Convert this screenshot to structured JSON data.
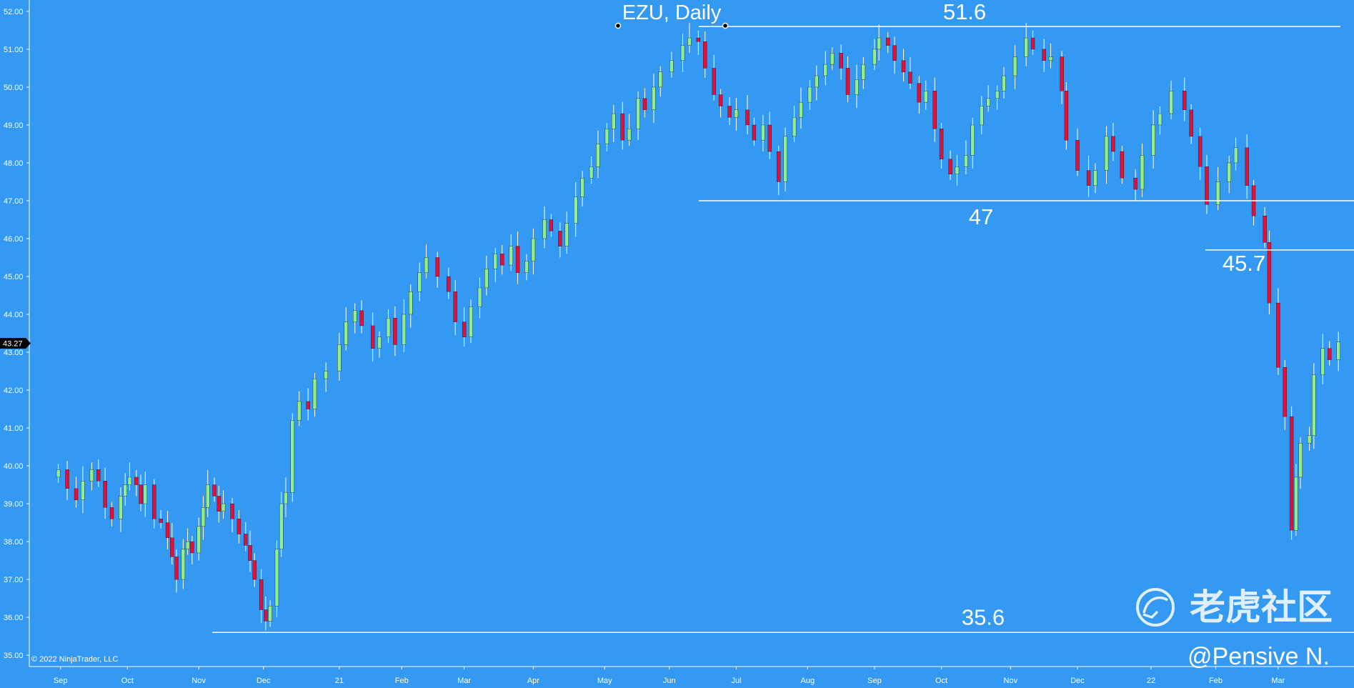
{
  "title": "EZU, Daily",
  "copyright": "© 2022 NinjaTrader, LLC",
  "watermark": "老虎社区",
  "author": "@Pensive N.",
  "current_price_label": "43.27",
  "colors": {
    "background": "#3399f3",
    "up": "#90ee90",
    "down": "#e0103a",
    "wick": "#ffffff",
    "level_line": "#ffffff",
    "price_tag": "#000000"
  },
  "chart_data": {
    "type": "candlestick",
    "symbol": "EZU",
    "interval": "Daily",
    "ylim": [
      34.7,
      52.3
    ],
    "y_ticks": [
      "35.00",
      "36.00",
      "37.00",
      "38.00",
      "39.00",
      "40.00",
      "41.00",
      "42.00",
      "43.00",
      "44.00",
      "45.00",
      "46.00",
      "47.00",
      "48.00",
      "49.00",
      "50.00",
      "51.00",
      "52.00"
    ],
    "x_ticks": [
      "Sep",
      "Oct",
      "Nov",
      "Dec",
      "21",
      "Feb",
      "Mar",
      "Apr",
      "May",
      "Jun",
      "Jul",
      "Aug",
      "Sep",
      "Oct",
      "Nov",
      "Dec",
      "22",
      "Feb",
      "Mar"
    ],
    "grid": false,
    "levels": [
      {
        "value": 51.6,
        "label": "51.6"
      },
      {
        "value": 47,
        "label": "47"
      },
      {
        "value": 45.7,
        "label": "45.7"
      },
      {
        "value": 35.6,
        "label": "35.6"
      }
    ],
    "closes": [
      [
        "2020-08-31",
        39.9
      ],
      [
        "2020-09-04",
        39.4
      ],
      [
        "2020-09-08",
        39.1
      ],
      [
        "2020-09-11",
        39.6
      ],
      [
        "2020-09-15",
        39.9
      ],
      [
        "2020-09-18",
        39.6
      ],
      [
        "2020-09-21",
        38.9
      ],
      [
        "2020-09-24",
        38.6
      ],
      [
        "2020-09-28",
        39.2
      ],
      [
        "2020-09-30",
        39.5
      ],
      [
        "2020-10-02",
        39.7
      ],
      [
        "2020-10-05",
        39.5
      ],
      [
        "2020-10-07",
        39.0
      ],
      [
        "2020-10-09",
        39.5
      ],
      [
        "2020-10-13",
        38.6
      ],
      [
        "2020-10-16",
        38.5
      ],
      [
        "2020-10-19",
        38.1
      ],
      [
        "2020-10-21",
        37.6
      ],
      [
        "2020-10-23",
        37.0
      ],
      [
        "2020-10-26",
        37.8
      ],
      [
        "2020-10-28",
        38.0
      ],
      [
        "2020-10-30",
        37.7
      ],
      [
        "2020-11-02",
        38.4
      ],
      [
        "2020-11-04",
        38.9
      ],
      [
        "2020-11-06",
        39.5
      ],
      [
        "2020-11-09",
        39.2
      ],
      [
        "2020-11-11",
        38.8
      ],
      [
        "2020-11-13",
        39.0
      ],
      [
        "2020-11-17",
        38.6
      ],
      [
        "2020-11-20",
        38.2
      ],
      [
        "2020-11-23",
        37.9
      ],
      [
        "2020-11-25",
        37.5
      ],
      [
        "2020-11-27",
        37.0
      ],
      [
        "2020-11-30",
        36.2
      ],
      [
        "2020-12-02",
        35.9
      ],
      [
        "2020-12-04",
        36.3
      ],
      [
        "2020-12-07",
        37.8
      ],
      [
        "2020-12-09",
        39.0
      ],
      [
        "2020-12-11",
        39.3
      ],
      [
        "2020-12-14",
        41.2
      ],
      [
        "2020-12-17",
        41.7
      ],
      [
        "2020-12-21",
        41.5
      ],
      [
        "2020-12-24",
        42.3
      ],
      [
        "2020-12-29",
        42.5
      ],
      [
        "2021-01-04",
        43.2
      ],
      [
        "2021-01-07",
        43.8
      ],
      [
        "2021-01-11",
        44.1
      ],
      [
        "2021-01-14",
        43.7
      ],
      [
        "2021-01-19",
        43.1
      ],
      [
        "2021-01-22",
        43.4
      ],
      [
        "2021-01-26",
        43.9
      ],
      [
        "2021-01-29",
        43.2
      ],
      [
        "2021-02-02",
        44.0
      ],
      [
        "2021-02-05",
        44.6
      ],
      [
        "2021-02-09",
        45.1
      ],
      [
        "2021-02-12",
        45.5
      ],
      [
        "2021-02-17",
        45.0
      ],
      [
        "2021-02-22",
        44.6
      ],
      [
        "2021-02-25",
        43.8
      ],
      [
        "2021-03-01",
        43.4
      ],
      [
        "2021-03-04",
        44.2
      ],
      [
        "2021-03-08",
        44.7
      ],
      [
        "2021-03-11",
        45.2
      ],
      [
        "2021-03-15",
        45.6
      ],
      [
        "2021-03-18",
        45.3
      ],
      [
        "2021-03-22",
        45.8
      ],
      [
        "2021-03-25",
        45.1
      ],
      [
        "2021-03-29",
        45.4
      ],
      [
        "2021-04-01",
        46.0
      ],
      [
        "2021-04-06",
        46.5
      ],
      [
        "2021-04-09",
        46.2
      ],
      [
        "2021-04-13",
        45.8
      ],
      [
        "2021-04-16",
        46.4
      ],
      [
        "2021-04-20",
        47.1
      ],
      [
        "2021-04-23",
        47.6
      ],
      [
        "2021-04-27",
        47.9
      ],
      [
        "2021-04-30",
        48.5
      ],
      [
        "2021-05-04",
        48.9
      ],
      [
        "2021-05-07",
        49.3
      ],
      [
        "2021-05-11",
        48.6
      ],
      [
        "2021-05-14",
        48.9
      ],
      [
        "2021-05-18",
        49.7
      ],
      [
        "2021-05-21",
        49.4
      ],
      [
        "2021-05-25",
        50.0
      ],
      [
        "2021-05-28",
        50.4
      ],
      [
        "2021-06-02",
        50.7
      ],
      [
        "2021-06-07",
        51.1
      ],
      [
        "2021-06-10",
        51.3
      ],
      [
        "2021-06-14",
        51.2
      ],
      [
        "2021-06-17",
        50.5
      ],
      [
        "2021-06-21",
        49.8
      ],
      [
        "2021-06-24",
        49.5
      ],
      [
        "2021-06-28",
        49.2
      ],
      [
        "2021-07-01",
        49.4
      ],
      [
        "2021-07-06",
        49.0
      ],
      [
        "2021-07-09",
        48.6
      ],
      [
        "2021-07-13",
        49.0
      ],
      [
        "2021-07-16",
        48.3
      ],
      [
        "2021-07-20",
        47.5
      ],
      [
        "2021-07-23",
        48.7
      ],
      [
        "2021-07-27",
        49.2
      ],
      [
        "2021-07-30",
        49.6
      ],
      [
        "2021-08-03",
        50.0
      ],
      [
        "2021-08-06",
        50.3
      ],
      [
        "2021-08-10",
        50.6
      ],
      [
        "2021-08-13",
        50.9
      ],
      [
        "2021-08-17",
        50.5
      ],
      [
        "2021-08-20",
        49.8
      ],
      [
        "2021-08-24",
        50.2
      ],
      [
        "2021-08-27",
        50.6
      ],
      [
        "2021-09-01",
        51.0
      ],
      [
        "2021-09-03",
        51.3
      ],
      [
        "2021-09-07",
        51.1
      ],
      [
        "2021-09-10",
        50.7
      ],
      [
        "2021-09-14",
        50.4
      ],
      [
        "2021-09-17",
        50.1
      ],
      [
        "2021-09-21",
        49.6
      ],
      [
        "2021-09-24",
        49.9
      ],
      [
        "2021-09-28",
        48.9
      ],
      [
        "2021-10-01",
        48.1
      ],
      [
        "2021-10-05",
        47.7
      ],
      [
        "2021-10-08",
        47.9
      ],
      [
        "2021-10-12",
        48.2
      ],
      [
        "2021-10-15",
        49.0
      ],
      [
        "2021-10-19",
        49.5
      ],
      [
        "2021-10-22",
        49.7
      ],
      [
        "2021-10-26",
        49.9
      ],
      [
        "2021-10-29",
        50.3
      ],
      [
        "2021-11-03",
        50.8
      ],
      [
        "2021-11-08",
        51.3
      ],
      [
        "2021-11-11",
        51.0
      ],
      [
        "2021-11-16",
        50.7
      ],
      [
        "2021-11-19",
        50.8
      ],
      [
        "2021-11-24",
        49.9
      ],
      [
        "2021-11-26",
        48.6
      ],
      [
        "2021-12-01",
        47.8
      ],
      [
        "2021-12-06",
        47.4
      ],
      [
        "2021-12-09",
        47.8
      ],
      [
        "2021-12-14",
        48.7
      ],
      [
        "2021-12-17",
        48.3
      ],
      [
        "2021-12-21",
        47.6
      ],
      [
        "2021-12-27",
        47.3
      ],
      [
        "2021-12-30",
        48.2
      ],
      [
        "2022-01-04",
        49.0
      ],
      [
        "2022-01-07",
        49.3
      ],
      [
        "2022-01-12",
        49.9
      ],
      [
        "2022-01-18",
        49.4
      ],
      [
        "2022-01-21",
        48.7
      ],
      [
        "2022-01-25",
        47.9
      ],
      [
        "2022-01-28",
        46.9
      ],
      [
        "2022-02-02",
        47.5
      ],
      [
        "2022-02-07",
        48.0
      ],
      [
        "2022-02-10",
        48.4
      ],
      [
        "2022-02-15",
        47.4
      ],
      [
        "2022-02-18",
        46.6
      ],
      [
        "2022-02-23",
        45.9
      ],
      [
        "2022-02-25",
        44.3
      ],
      [
        "2022-03-01",
        42.6
      ],
      [
        "2022-03-04",
        41.3
      ],
      [
        "2022-03-07",
        38.3
      ],
      [
        "2022-03-09",
        39.7
      ],
      [
        "2022-03-11",
        40.6
      ],
      [
        "2022-03-15",
        40.8
      ],
      [
        "2022-03-17",
        42.4
      ],
      [
        "2022-03-21",
        43.1
      ],
      [
        "2022-03-24",
        42.8
      ],
      [
        "2022-03-28",
        43.27
      ]
    ]
  }
}
